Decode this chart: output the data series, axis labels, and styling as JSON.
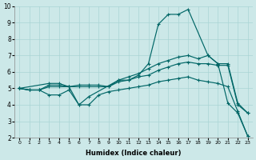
{
  "xlabel": "Humidex (Indice chaleur)",
  "xlim": [
    -0.5,
    23.5
  ],
  "ylim": [
    2,
    10
  ],
  "yticks": [
    2,
    3,
    4,
    5,
    6,
    7,
    8,
    9,
    10
  ],
  "xticks": [
    0,
    1,
    2,
    3,
    4,
    5,
    6,
    7,
    8,
    9,
    10,
    11,
    12,
    13,
    14,
    15,
    16,
    17,
    18,
    19,
    20,
    21,
    22,
    23
  ],
  "bg_color": "#cce8e8",
  "grid_color": "#aad4d4",
  "line_color": "#006666",
  "line1_x": [
    0,
    3,
    4,
    5,
    6,
    7,
    10,
    11,
    12,
    13,
    14,
    15,
    16,
    17,
    19,
    20,
    21,
    22,
    23
  ],
  "line1_y": [
    5.0,
    5.3,
    5.3,
    5.1,
    4.0,
    4.5,
    5.5,
    5.5,
    5.8,
    6.5,
    8.9,
    9.5,
    9.5,
    9.8,
    7.0,
    6.5,
    4.1,
    3.5,
    2.1
  ],
  "line2_x": [
    0,
    1,
    2,
    3,
    4,
    5,
    6,
    7,
    8,
    9,
    10,
    11,
    12,
    13,
    14,
    15,
    16,
    17,
    18,
    19,
    20,
    21,
    22,
    23
  ],
  "line2_y": [
    5.0,
    4.9,
    4.9,
    5.2,
    5.2,
    5.1,
    5.2,
    5.2,
    5.2,
    5.1,
    5.5,
    5.7,
    5.9,
    6.2,
    6.5,
    6.7,
    6.9,
    7.0,
    6.8,
    7.0,
    6.5,
    6.5,
    4.1,
    3.5
  ],
  "line3_x": [
    0,
    1,
    2,
    3,
    4,
    5,
    6,
    7,
    8,
    9,
    10,
    11,
    12,
    13,
    14,
    15,
    16,
    17,
    18,
    19,
    20,
    21,
    22,
    23
  ],
  "line3_y": [
    5.0,
    4.9,
    4.9,
    5.1,
    5.1,
    5.1,
    5.1,
    5.1,
    5.1,
    5.1,
    5.4,
    5.5,
    5.7,
    5.8,
    6.1,
    6.3,
    6.5,
    6.6,
    6.5,
    6.5,
    6.4,
    6.4,
    4.0,
    3.5
  ],
  "line4_x": [
    0,
    1,
    2,
    3,
    4,
    5,
    6,
    7,
    8,
    9,
    10,
    11,
    12,
    13,
    14,
    15,
    16,
    17,
    18,
    19,
    20,
    21,
    22,
    23
  ],
  "line4_y": [
    5.0,
    4.9,
    4.9,
    4.6,
    4.6,
    4.9,
    4.0,
    4.0,
    4.6,
    4.8,
    4.9,
    5.0,
    5.1,
    5.2,
    5.4,
    5.5,
    5.6,
    5.7,
    5.5,
    5.4,
    5.3,
    5.1,
    3.6,
    2.1
  ]
}
